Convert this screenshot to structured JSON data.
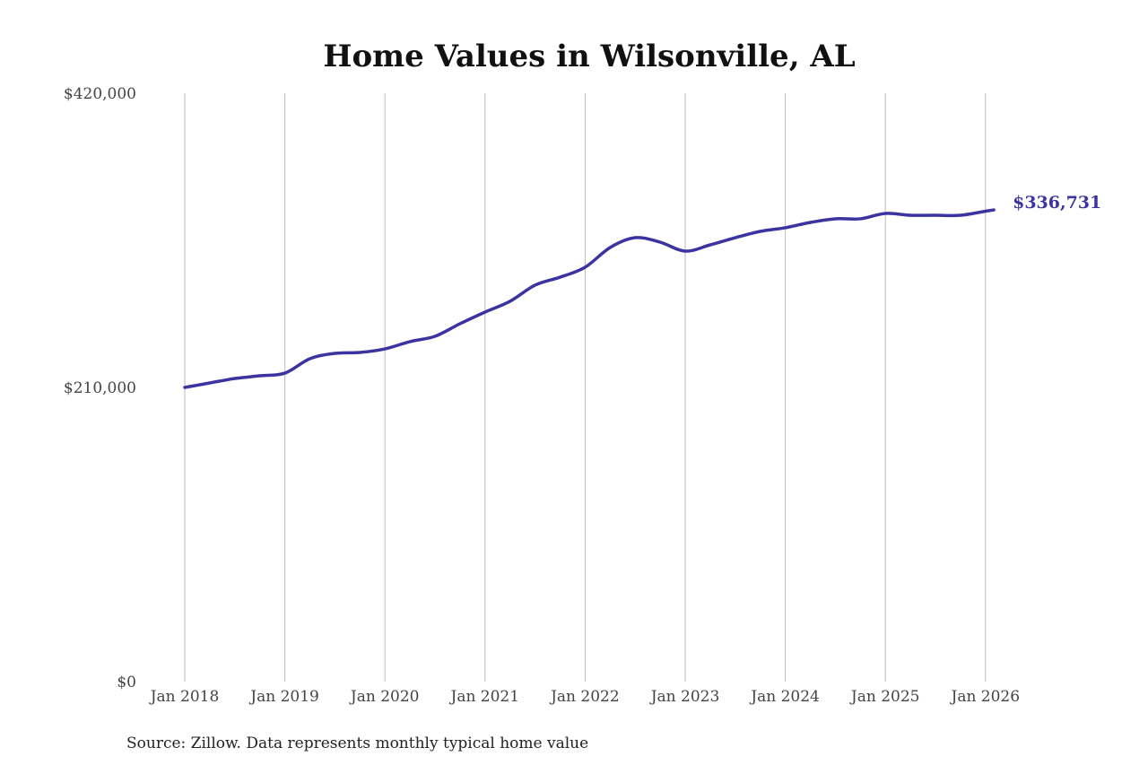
{
  "chart_data": {
    "type": "line",
    "title": "Home Values in Wilsonville, AL",
    "xlabel": "",
    "ylabel": "",
    "ylim": [
      0,
      420000
    ],
    "y_ticks": [
      {
        "value": 0,
        "label": "$0"
      },
      {
        "value": 210000,
        "label": "$210,000"
      },
      {
        "value": 420000,
        "label": "$420,000"
      }
    ],
    "x_ticks": [
      {
        "value": "2018-01",
        "label": "Jan 2018"
      },
      {
        "value": "2019-01",
        "label": "Jan 2019"
      },
      {
        "value": "2020-01",
        "label": "Jan 2020"
      },
      {
        "value": "2021-01",
        "label": "Jan 2021"
      },
      {
        "value": "2022-01",
        "label": "Jan 2022"
      },
      {
        "value": "2023-01",
        "label": "Jan 2023"
      },
      {
        "value": "2024-01",
        "label": "Jan 2024"
      },
      {
        "value": "2025-01",
        "label": "Jan 2025"
      },
      {
        "value": "2026-01",
        "label": "Jan 2026"
      }
    ],
    "grid": "vertical",
    "line_color": "#3b34a0",
    "series": [
      {
        "x": [
          "2018-01",
          "2018-04",
          "2018-07",
          "2018-10",
          "2019-01",
          "2019-04",
          "2019-07",
          "2019-10",
          "2020-01",
          "2020-04",
          "2020-07",
          "2020-10",
          "2021-01",
          "2021-04",
          "2021-07",
          "2021-10",
          "2022-01",
          "2022-04",
          "2022-07",
          "2022-10",
          "2023-01",
          "2023-04",
          "2023-07",
          "2023-10",
          "2024-01",
          "2024-04",
          "2024-07",
          "2024-10",
          "2025-01",
          "2025-04",
          "2025-07",
          "2025-10",
          "2026-01",
          "2026-02"
        ],
        "values": [
          210000,
          213200,
          216400,
          218300,
          220200,
          230500,
          234300,
          235000,
          237500,
          242700,
          246500,
          255500,
          263800,
          271500,
          283000,
          288700,
          295800,
          309900,
          316900,
          313700,
          307300,
          311800,
          316900,
          321400,
          324000,
          327800,
          330400,
          330400,
          334200,
          332900,
          332900,
          332900,
          335800,
          336731
        ]
      }
    ],
    "end_label": "$336,731",
    "source": "Source: Zillow. Data represents monthly typical home value"
  }
}
